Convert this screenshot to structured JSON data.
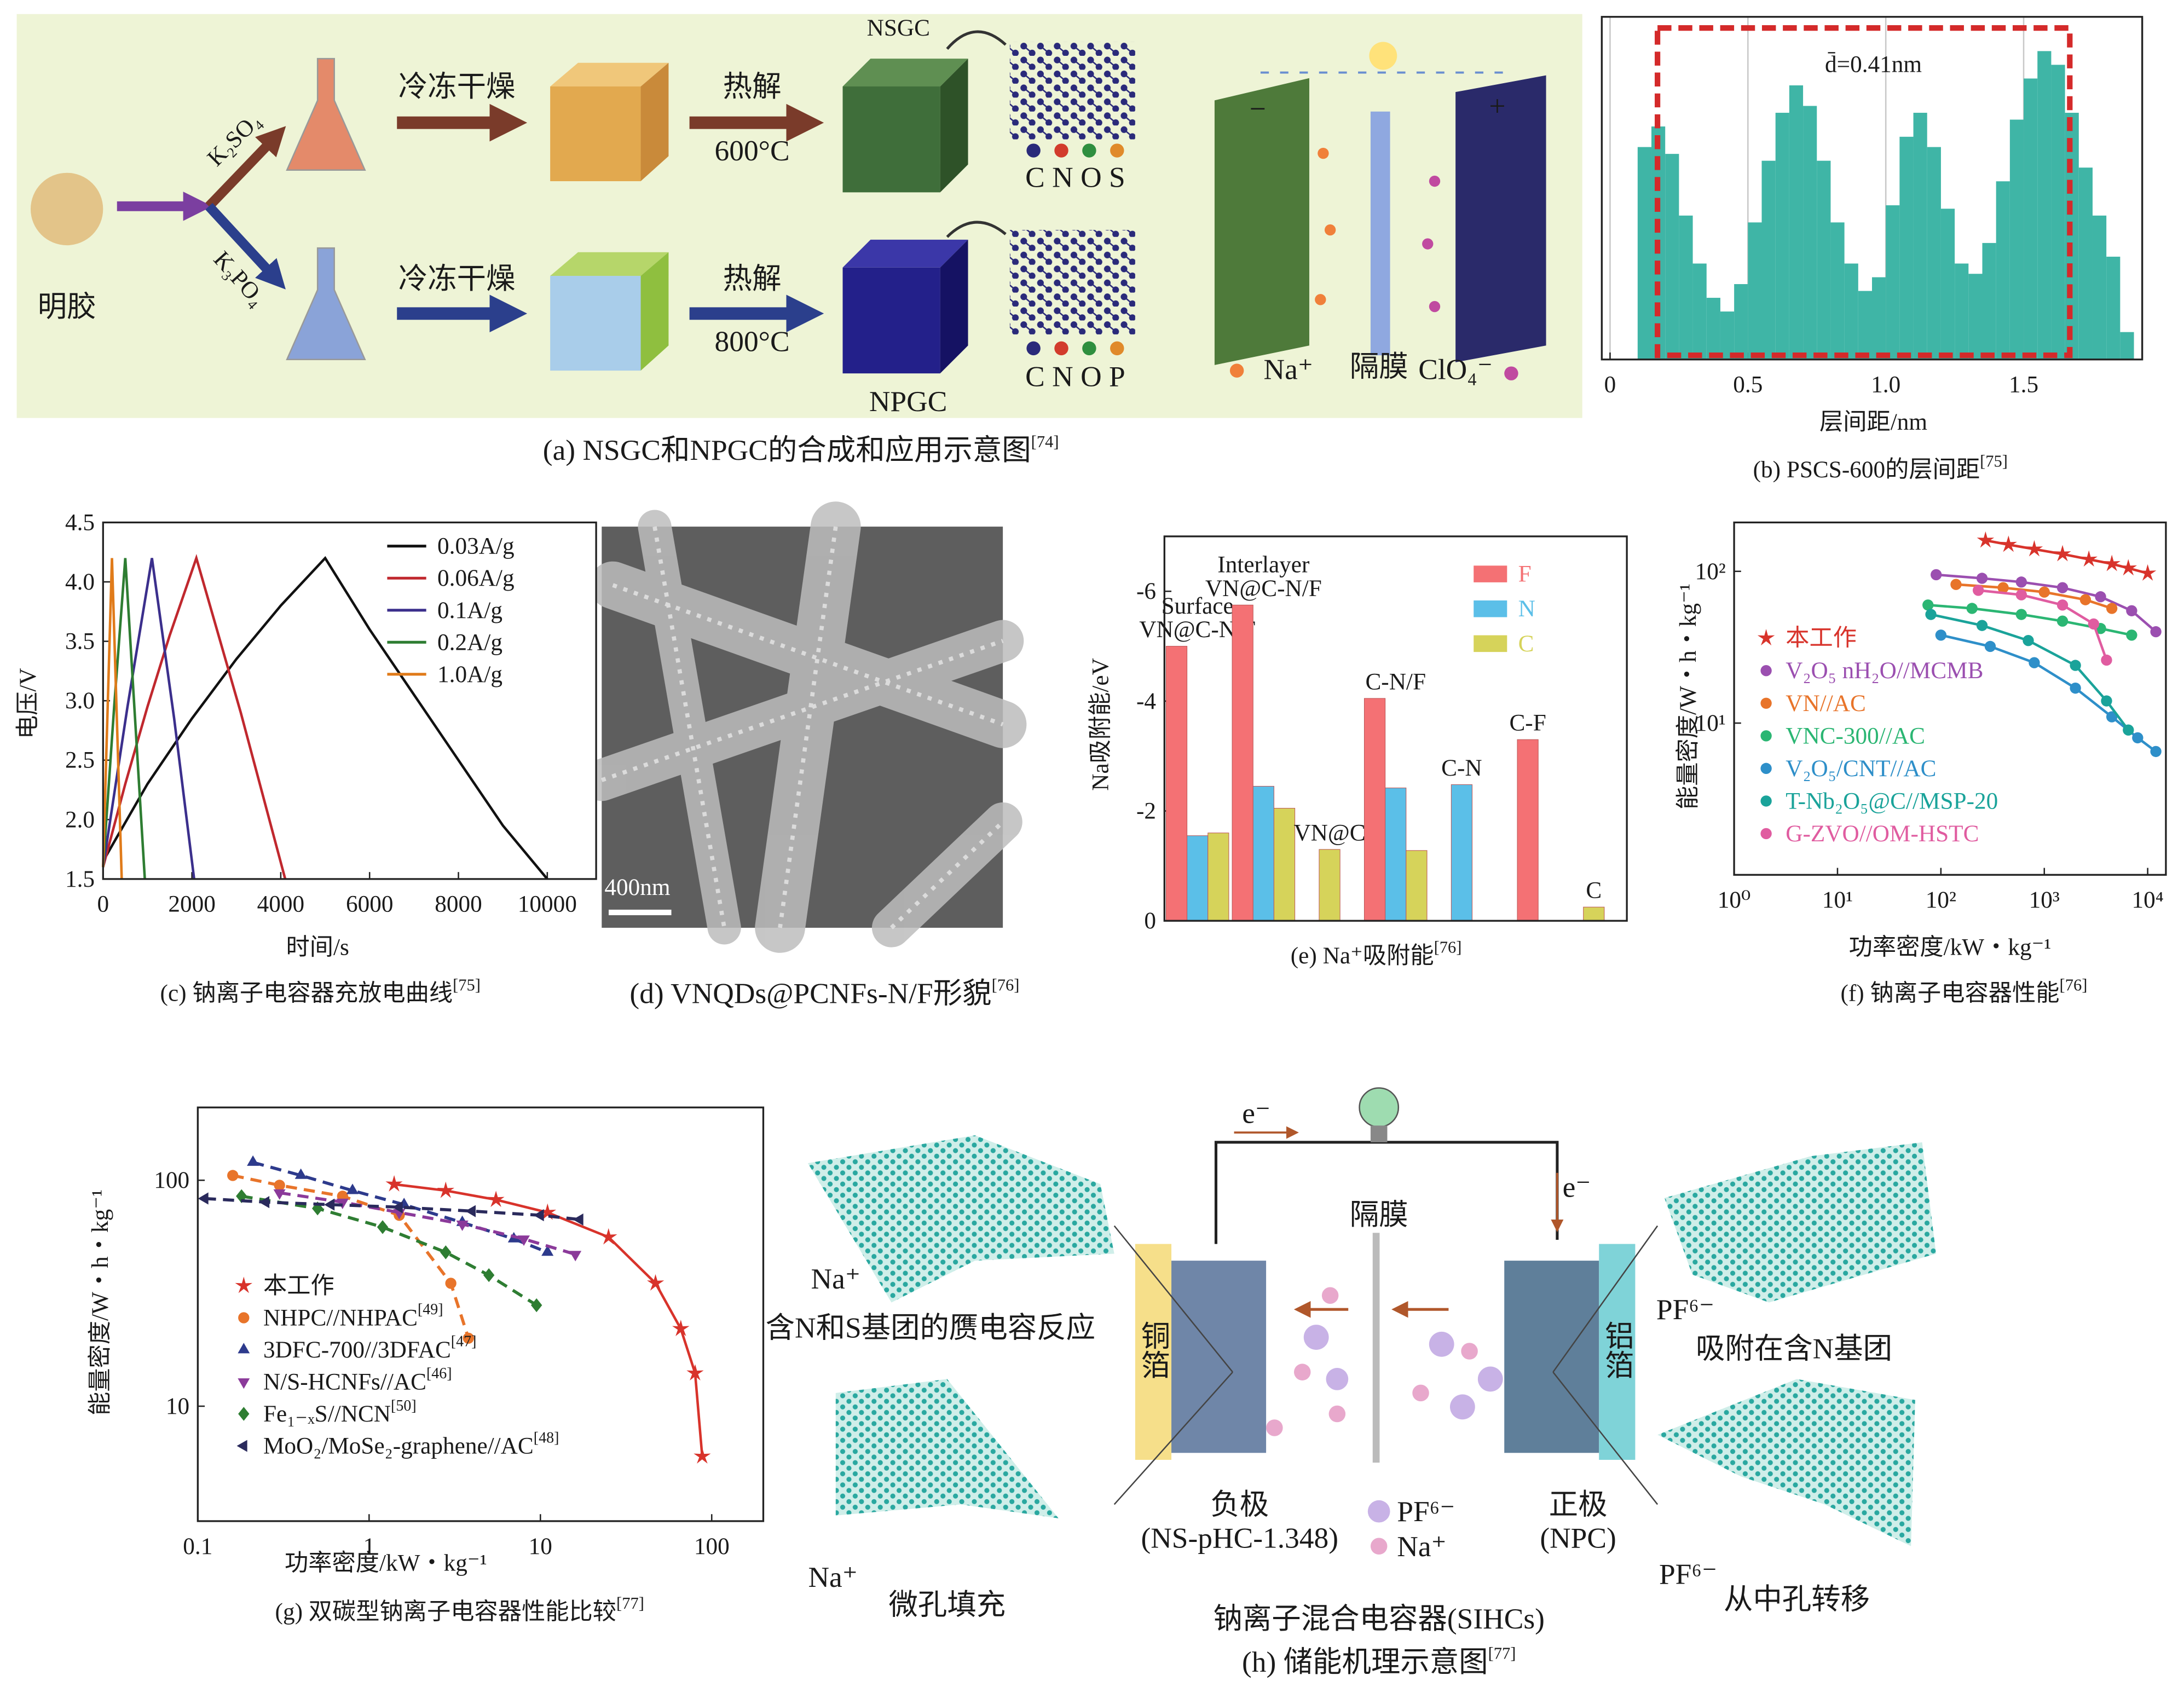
{
  "panel_a": {
    "gelatin": "明胶",
    "salt_1": "K₂SO₄",
    "salt_2": "K₃PO₄",
    "step_freeze_1": "冷冻干燥",
    "step_freeze_2": "冷冻干燥",
    "step_pyro_1": "热解",
    "step_pyro_2": "热解",
    "temp_1": "600°C",
    "temp_2": "800°C",
    "product_1": "NSGC",
    "product_2": "NPGC",
    "elements_1": "C N O S",
    "elements_2": "C N O P",
    "minus": "−",
    "plus": "+",
    "cation": "Na⁺",
    "separator": "隔膜",
    "anion": "ClO₄⁻",
    "caption": {
      "text": "(a) NSGC和NPGC的合成和应用示意图",
      "ref": "[74]"
    }
  },
  "panel_d": {
    "scale_bar": "400nm",
    "caption": {
      "text": "(d) VNQDs@PCNFs-N/F形貌",
      "ref": "[76]"
    }
  },
  "panel_h": {
    "electron_1": "e⁻",
    "electron_2": "e⁻",
    "separator": "隔膜",
    "ion_1": "Na⁺",
    "mechanism_1": "含N和S基团的赝电容反应",
    "ion_2": "Na⁺",
    "mechanism_2": "微孔填充",
    "collector_1": "铜箔",
    "collector_2": "铝箔",
    "anode": "负极",
    "anode_material": "(NS-pHC-1.348)",
    "legend_anion": "PF⁶⁻",
    "legend_cation": "Na⁺",
    "cathode": "正极",
    "cathode_material": "(NPC)",
    "ion_3": "PF⁶⁻",
    "mechanism_3": "吸附在含N基团",
    "ion_4": "PF⁶⁻",
    "mechanism_4": "从中孔转移",
    "device": "钠离子混合电容器(SIHCs)",
    "caption": {
      "text": "(h) 储能机理示意图",
      "ref": "[77]"
    }
  },
  "chart_data": [
    {
      "type": "histogram",
      "annotation": "d̄=0.41nm",
      "xlabel": "层间距/nm",
      "caption": {
        "text": "(b) PSCS-600的层间距",
        "ref": "[75]"
      },
      "color": "#3fb5a6",
      "bins": [
        0.1,
        0.15,
        0.2,
        0.25,
        0.3,
        0.35,
        0.4,
        0.45,
        0.5,
        0.55,
        0.6,
        0.65,
        0.7,
        0.75,
        0.8,
        0.85,
        0.9,
        0.95,
        1.0,
        1.05,
        1.1,
        1.15,
        1.2,
        1.25,
        1.3,
        1.35,
        1.4,
        1.45,
        1.5,
        1.55,
        1.6,
        1.65,
        1.7,
        1.75,
        1.8,
        1.85,
        1.9
      ],
      "counts": [
        62,
        68,
        60,
        42,
        28,
        18,
        14,
        22,
        40,
        58,
        72,
        80,
        74,
        58,
        40,
        28,
        20,
        24,
        45,
        65,
        72,
        62,
        44,
        28,
        25,
        34,
        52,
        70,
        82,
        90,
        86,
        72,
        56,
        42,
        30,
        8
      ],
      "xlim": [
        -0.03,
        1.93
      ],
      "ylim": [
        0,
        100
      ],
      "xticks": [
        0,
        0.5,
        {
          "value": 1,
          "label": "1.0"
        },
        1.5
      ],
      "grid": true
    },
    {
      "type": "line",
      "xlabel": "时间/s",
      "ylabel": "电压/V",
      "caption": {
        "text": "(c) 钠离子电容器充放电曲线",
        "ref": "[75]"
      },
      "xlim": [
        0,
        11100
      ],
      "ylim": [
        1.5,
        4.5
      ],
      "xticks": [
        0,
        2000,
        4000,
        6000,
        8000,
        10000
      ],
      "yticks": [
        1.5,
        {
          "value": 2,
          "label": "2.0"
        },
        2.5,
        {
          "value": 3,
          "label": "3.0"
        },
        3.5,
        {
          "value": 4,
          "label": "4.0"
        },
        4.5
      ],
      "legend": "upper right",
      "series": [
        {
          "name": "0.03A/g",
          "color": "#111111",
          "x": [
            0,
            1000,
            2000,
            3000,
            4000,
            5000,
            6000,
            7000,
            8000,
            9000,
            10000
          ],
          "values": [
            1.65,
            2.3,
            2.85,
            3.35,
            3.8,
            4.2,
            3.6,
            3.05,
            2.5,
            1.95,
            1.5
          ]
        },
        {
          "name": "0.06A/g",
          "color": "#c0282e",
          "x": [
            0,
            500,
            1000,
            1500,
            2100,
            2600,
            3100,
            3600,
            4100
          ],
          "values": [
            1.6,
            2.3,
            2.95,
            3.55,
            4.2,
            3.55,
            2.9,
            2.2,
            1.5
          ]
        },
        {
          "name": "0.1A/g",
          "color": "#3b2f8c",
          "x": [
            0,
            550,
            1100,
            1600,
            2050
          ],
          "values": [
            1.6,
            2.95,
            4.2,
            2.85,
            1.5
          ]
        },
        {
          "name": "0.2A/g",
          "color": "#2e7d32",
          "x": [
            0,
            250,
            500,
            720,
            940
          ],
          "values": [
            1.6,
            2.95,
            4.2,
            2.85,
            1.5
          ]
        },
        {
          "name": "1.0A/g",
          "color": "#e07b1a",
          "x": [
            0,
            200,
            420
          ],
          "values": [
            1.6,
            4.2,
            1.5
          ]
        }
      ]
    },
    {
      "type": "bar",
      "ylabel": "Na吸附能/eV",
      "caption": {
        "text": "(e) Na⁺吸附能",
        "ref": "[76]"
      },
      "categories": [
        "Surface\nVN@C-N/F",
        "Interlayer\nVN@C-N/F",
        "VN@C",
        "C-N/F",
        "C-N",
        "C-F",
        "C"
      ],
      "series": [
        {
          "name": "F",
          "color": "#f47174",
          "values": [
            -5.0,
            -5.75,
            null,
            -4.05,
            null,
            -3.3,
            null
          ]
        },
        {
          "name": "N",
          "color": "#5bbfe8",
          "values": [
            -1.55,
            -2.45,
            null,
            -2.42,
            -2.48,
            null,
            null
          ]
        },
        {
          "name": "C",
          "color": "#d6d35a",
          "values": [
            -1.6,
            -2.05,
            -1.3,
            -1.28,
            null,
            null,
            -0.25
          ]
        }
      ],
      "ylim": [
        0,
        -7
      ],
      "yticks": [
        0,
        -2,
        -4,
        -6
      ],
      "legend": "upper right"
    },
    {
      "type": "line",
      "xlog": true,
      "ylog": true,
      "xlabel": "功率密度/kW・kg⁻¹",
      "ylabel": "能量密度/W・h・kg⁻¹",
      "caption": {
        "text": "(f) 钠离子电容器性能",
        "ref": "[76]"
      },
      "xlim": [
        1,
        15000
      ],
      "ylim": [
        1,
        210
      ],
      "xticks": [
        {
          "value": 1,
          "label": "10⁰"
        },
        {
          "value": 10,
          "label": "10¹"
        },
        {
          "value": 100,
          "label": "10²"
        },
        {
          "value": 1000,
          "label": "10³"
        },
        {
          "value": 10000,
          "label": "10⁴"
        }
      ],
      "yticks": [
        {
          "value": 10,
          "label": "10¹"
        },
        {
          "value": 100,
          "label": "10²"
        }
      ],
      "legend": "center left",
      "legend_text_colored": true,
      "series": [
        {
          "name": "本工作",
          "color": "#d8332b",
          "marker": "star",
          "x": [
            270,
            450,
            800,
            1500,
            2700,
            4500,
            6500,
            10000
          ],
          "values": [
            160,
            150,
            140,
            130,
            120,
            112,
            105,
            97
          ]
        },
        {
          "name": "V₂O₅ nH₂O//MCMB",
          "color": "#9b4fb0",
          "marker": "circle",
          "x": [
            90,
            250,
            600,
            1500,
            3500,
            7000,
            12000
          ],
          "values": [
            95,
            90,
            85,
            78,
            68,
            55,
            40
          ]
        },
        {
          "name": "VN//AC",
          "color": "#e8742a",
          "marker": "circle",
          "x": [
            140,
            400,
            1000,
            2500,
            4500
          ],
          "values": [
            82,
            78,
            73,
            65,
            57
          ]
        },
        {
          "name": "VNC-300//AC",
          "color": "#2bb673",
          "marker": "circle",
          "x": [
            75,
            200,
            600,
            1500,
            3500,
            7000
          ],
          "values": [
            60,
            57,
            52,
            47,
            42,
            38
          ]
        },
        {
          "name": "V₂O₅/CNT//AC",
          "color": "#2e8fc9",
          "marker": "circle",
          "x": [
            100,
            300,
            800,
            2000,
            4500,
            8000,
            12000
          ],
          "values": [
            38,
            32,
            25,
            17,
            11,
            8,
            6.5
          ]
        },
        {
          "name": "T-Nb₂O₅@C//MSP-20",
          "color": "#1aa39a",
          "marker": "circle",
          "x": [
            80,
            250,
            700,
            2000,
            4000,
            6500
          ],
          "values": [
            52,
            44,
            35,
            24,
            14,
            9
          ]
        },
        {
          "name": "G-ZVO//OM-HSTC",
          "color": "#e05ca0",
          "marker": "circle",
          "x": [
            230,
            600,
            1500,
            3000,
            4000
          ],
          "values": [
            75,
            70,
            60,
            45,
            26
          ]
        }
      ]
    },
    {
      "type": "line",
      "xlog": true,
      "ylog": true,
      "xlabel": "功率密度/kW・kg⁻¹",
      "ylabel": "能量密度/W・h・kg⁻¹",
      "caption": {
        "text": "(g) 双碳型钠离子电容器性能比较",
        "ref": "[77]"
      },
      "xlim": [
        0.1,
        200
      ],
      "ylim": [
        3.1,
        210
      ],
      "xticks": [
        0.1,
        1,
        10,
        100
      ],
      "yticks": [
        10,
        100
      ],
      "legend": "lower left",
      "series": [
        {
          "name": "本工作",
          "color": "#d8332b",
          "marker": "star",
          "linestyle": "solid",
          "x": [
            1.4,
            2.8,
            5.5,
            11,
            25,
            47,
            66,
            80,
            88
          ],
          "values": [
            96,
            90,
            82,
            72,
            56,
            35,
            22,
            14,
            6
          ]
        },
        {
          "name": "NHPC//NHPAC",
          "ref": "[49]",
          "color": "#e8742a",
          "marker": "circle",
          "linestyle": "dashed",
          "x": [
            0.16,
            0.3,
            0.7,
            1.5,
            3,
            3.8
          ],
          "values": [
            105,
            95,
            85,
            70,
            35,
            20
          ]
        },
        {
          "name": "3DFC-700//3DFAC",
          "ref": "[47]",
          "color": "#2d3a8c",
          "marker": "triangle-up",
          "linestyle": "dashed",
          "x": [
            0.21,
            0.4,
            0.8,
            1.6,
            3.5,
            7,
            11
          ],
          "values": [
            120,
            105,
            90,
            78,
            65,
            55,
            48
          ]
        },
        {
          "name": "N/S-HCNFs//AC",
          "ref": "[46]",
          "color": "#8b3a9a",
          "marker": "triangle-down",
          "linestyle": "dashed",
          "x": [
            0.3,
            0.7,
            1.5,
            3.5,
            8,
            16
          ],
          "values": [
            88,
            80,
            72,
            64,
            55,
            47
          ]
        },
        {
          "name": "Fe₁₋ₓS//NCN",
          "ref": "[50]",
          "color": "#2e7d32",
          "marker": "diamond",
          "linestyle": "dashed",
          "x": [
            0.18,
            0.5,
            1.2,
            2.8,
            5,
            9.5
          ],
          "values": [
            85,
            75,
            62,
            48,
            38,
            28
          ]
        },
        {
          "name": "MoO₂/MoSe₂-graphene//AC",
          "ref": "[48]",
          "color": "#2a2a5c",
          "marker": "triangle-left",
          "linestyle": "dashed",
          "x": [
            0.11,
            0.25,
            0.6,
            1.5,
            4,
            10,
            17
          ],
          "values": [
            83,
            80,
            78,
            76,
            73,
            70,
            67
          ]
        }
      ]
    }
  ]
}
